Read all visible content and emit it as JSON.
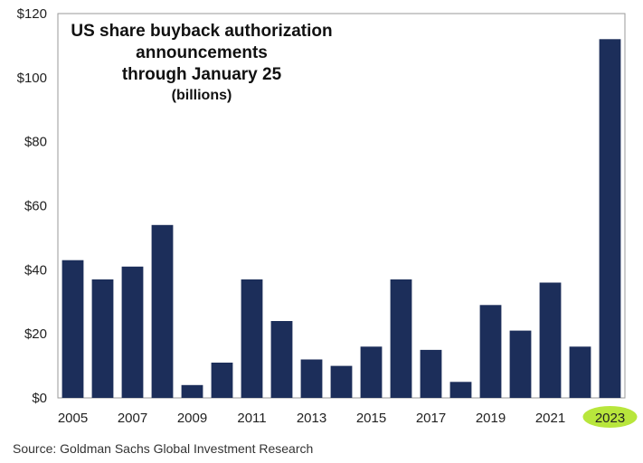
{
  "chart_data": {
    "type": "bar",
    "title_lines": [
      "US share buyback authorization",
      "announcements",
      "through January 25"
    ],
    "subtitle": "(billions)",
    "categories": [
      "2005",
      "2006",
      "2007",
      "2008",
      "2009",
      "2010",
      "2011",
      "2012",
      "2013",
      "2014",
      "2015",
      "2016",
      "2017",
      "2018",
      "2019",
      "2020",
      "2021",
      "2022",
      "2023"
    ],
    "x_tick_labels": [
      "2005",
      "2007",
      "2009",
      "2011",
      "2013",
      "2015",
      "2017",
      "2019",
      "2021",
      "2023"
    ],
    "values": [
      43,
      37,
      41,
      54,
      4,
      11,
      37,
      24,
      12,
      10,
      16,
      37,
      15,
      5,
      29,
      21,
      36,
      16,
      112
    ],
    "y_tick_labels": [
      "$0",
      "$20",
      "$40",
      "$60",
      "$80",
      "$100",
      "$120"
    ],
    "y_ticks": [
      0,
      20,
      40,
      60,
      80,
      100,
      120
    ],
    "ylim": [
      0,
      120
    ],
    "grid": false,
    "bar_color": "#1c2e5a",
    "highlight": {
      "category": "2023",
      "color": "#b8e63c"
    }
  },
  "source": "Source: Goldman Sachs Global Investment Research"
}
